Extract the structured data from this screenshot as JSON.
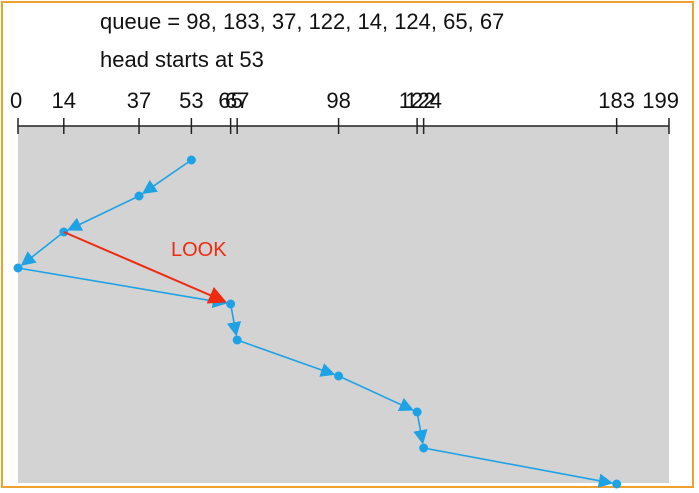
{
  "header": {
    "queue_text": "queue = 98, 183, 37, 122, 14, 124, 65, 67",
    "head_text": "head starts at 53"
  },
  "chart_data": {
    "type": "line",
    "x_range": [
      0,
      199
    ],
    "ticks": [
      0,
      14,
      37,
      53,
      65,
      67,
      98,
      122,
      124,
      183,
      199
    ],
    "tick_labels": [
      "0",
      "14",
      "37",
      "53",
      "65",
      "67",
      "98",
      "122",
      "124",
      "183",
      "199"
    ],
    "head_path": [
      53,
      37,
      14,
      0,
      65,
      67,
      98,
      122,
      124,
      183
    ],
    "look_path": [
      14,
      65
    ],
    "look_label": "LOOK",
    "colors": {
      "background": "#d3d3d3",
      "path": "#1ea2e6",
      "look": "#ee2a10",
      "frame": "#f0a030"
    }
  }
}
